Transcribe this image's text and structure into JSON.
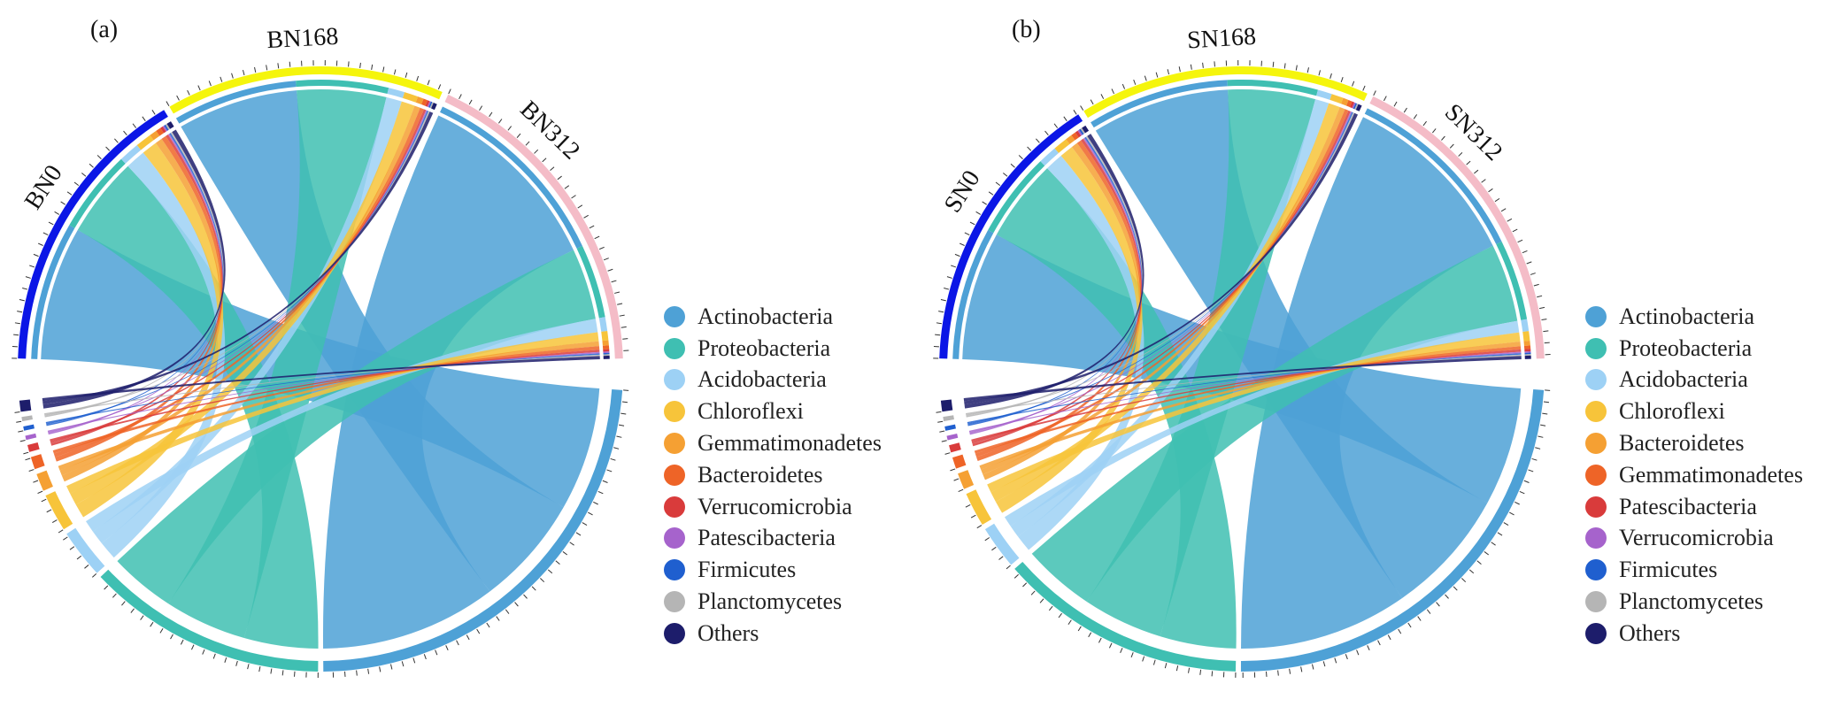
{
  "chart_data": [
    {
      "type": "chord",
      "panel_label": "(a)",
      "samples": [
        {
          "name": "BN0",
          "color": "#0b16e6"
        },
        {
          "name": "BN168",
          "color": "#f5f50c"
        },
        {
          "name": "BN312",
          "color": "#f4bcc7"
        }
      ],
      "phyla": [
        {
          "name": "Actinobacteria",
          "color": "#4ea1d6"
        },
        {
          "name": "Proteobacteria",
          "color": "#3fbfb2"
        },
        {
          "name": "Acidobacteria",
          "color": "#9dd1f5"
        },
        {
          "name": "Chloroflexi",
          "color": "#f7c43a"
        },
        {
          "name": "Gemmatimonadetes",
          "color": "#f5a033"
        },
        {
          "name": "Bacteroidetes",
          "color": "#ee6427"
        },
        {
          "name": "Verrucomicrobia",
          "color": "#d93b3b"
        },
        {
          "name": "Patescibacteria",
          "color": "#a663cc"
        },
        {
          "name": "Firmicutes",
          "color": "#1f5fcf"
        },
        {
          "name": "Planctomycetes",
          "color": "#b5b5b5"
        },
        {
          "name": "Others",
          "color": "#1d1d6b"
        }
      ],
      "matrix": [
        [
          30,
          18,
          4.5,
          3.5,
          1.6,
          1.1,
          0.6,
          0.35,
          0.35,
          0.35,
          1.0
        ],
        [
          27,
          20,
          3.5,
          3.0,
          1.3,
          0.9,
          0.5,
          0.3,
          0.3,
          0.3,
          0.8
        ],
        [
          43,
          16,
          3.0,
          2.0,
          1.1,
          0.8,
          0.5,
          0.3,
          0.3,
          0.3,
          0.7
        ]
      ]
    },
    {
      "type": "chord",
      "panel_label": "(b)",
      "samples": [
        {
          "name": "SN0",
          "color": "#0b16e6"
        },
        {
          "name": "SN168",
          "color": "#f5f50c"
        },
        {
          "name": "SN312",
          "color": "#f4bcc7"
        }
      ],
      "phyla": [
        {
          "name": "Actinobacteria",
          "color": "#4ea1d6"
        },
        {
          "name": "Proteobacteria",
          "color": "#3fbfb2"
        },
        {
          "name": "Acidobacteria",
          "color": "#9dd1f5"
        },
        {
          "name": "Chloroflexi",
          "color": "#f7c43a"
        },
        {
          "name": "Bacteroidetes",
          "color": "#f5a033"
        },
        {
          "name": "Gemmatimonadetes",
          "color": "#ee6427"
        },
        {
          "name": "Patescibacteria",
          "color": "#d93b3b"
        },
        {
          "name": "Verrucomicrobia",
          "color": "#a663cc"
        },
        {
          "name": "Firmicutes",
          "color": "#1f5fcf"
        },
        {
          "name": "Planctomycetes",
          "color": "#b5b5b5"
        },
        {
          "name": "Others",
          "color": "#1d1d6b"
        }
      ],
      "matrix": [
        [
          28,
          18,
          4.0,
          3.0,
          1.4,
          1.0,
          0.6,
          0.35,
          0.35,
          0.35,
          0.9
        ],
        [
          30,
          19,
          3.0,
          2.5,
          1.2,
          0.8,
          0.5,
          0.3,
          0.3,
          0.3,
          0.8
        ],
        [
          40,
          17,
          2.5,
          2.0,
          1.0,
          0.7,
          0.5,
          0.3,
          0.3,
          0.3,
          0.7
        ]
      ]
    }
  ]
}
